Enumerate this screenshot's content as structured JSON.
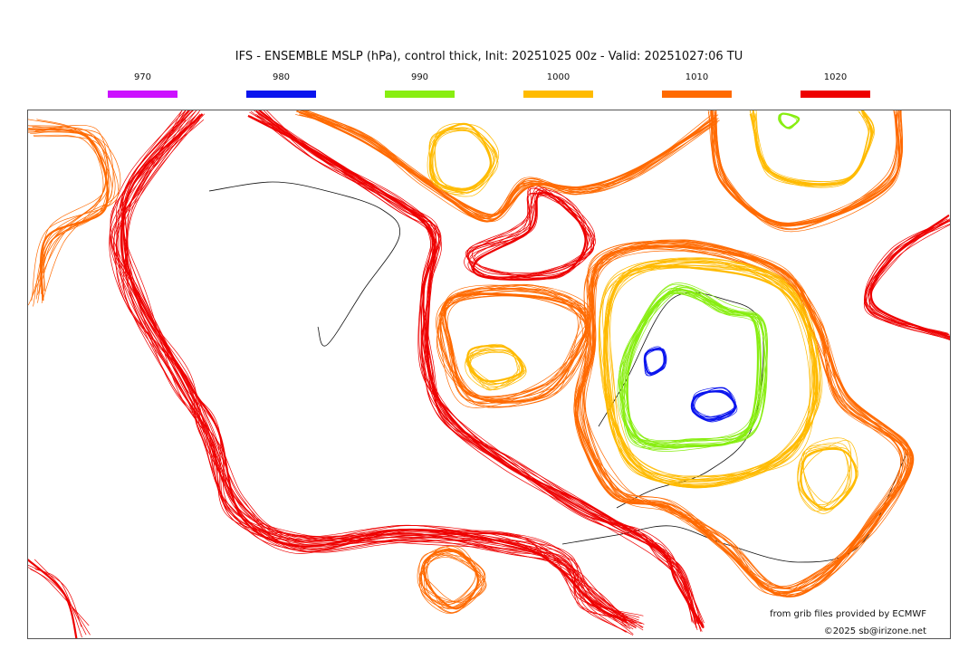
{
  "title": "IFS - ENSEMBLE MSLP (hPa), control thick, Init: 20251025 00z - Valid: 20251027:06 TU",
  "legend": [
    {
      "label": "970",
      "color": "#cc11ff"
    },
    {
      "label": "980",
      "color": "#0a14ee"
    },
    {
      "label": "990",
      "color": "#88ee11"
    },
    {
      "label": "1000",
      "color": "#ffbb00"
    },
    {
      "label": "1010",
      "color": "#ff6a00"
    },
    {
      "label": "1020",
      "color": "#ee0000"
    }
  ],
  "credits": {
    "source": "from grib files provided by ECMWF",
    "copyright": "©2025 sb@irizone.net"
  }
}
